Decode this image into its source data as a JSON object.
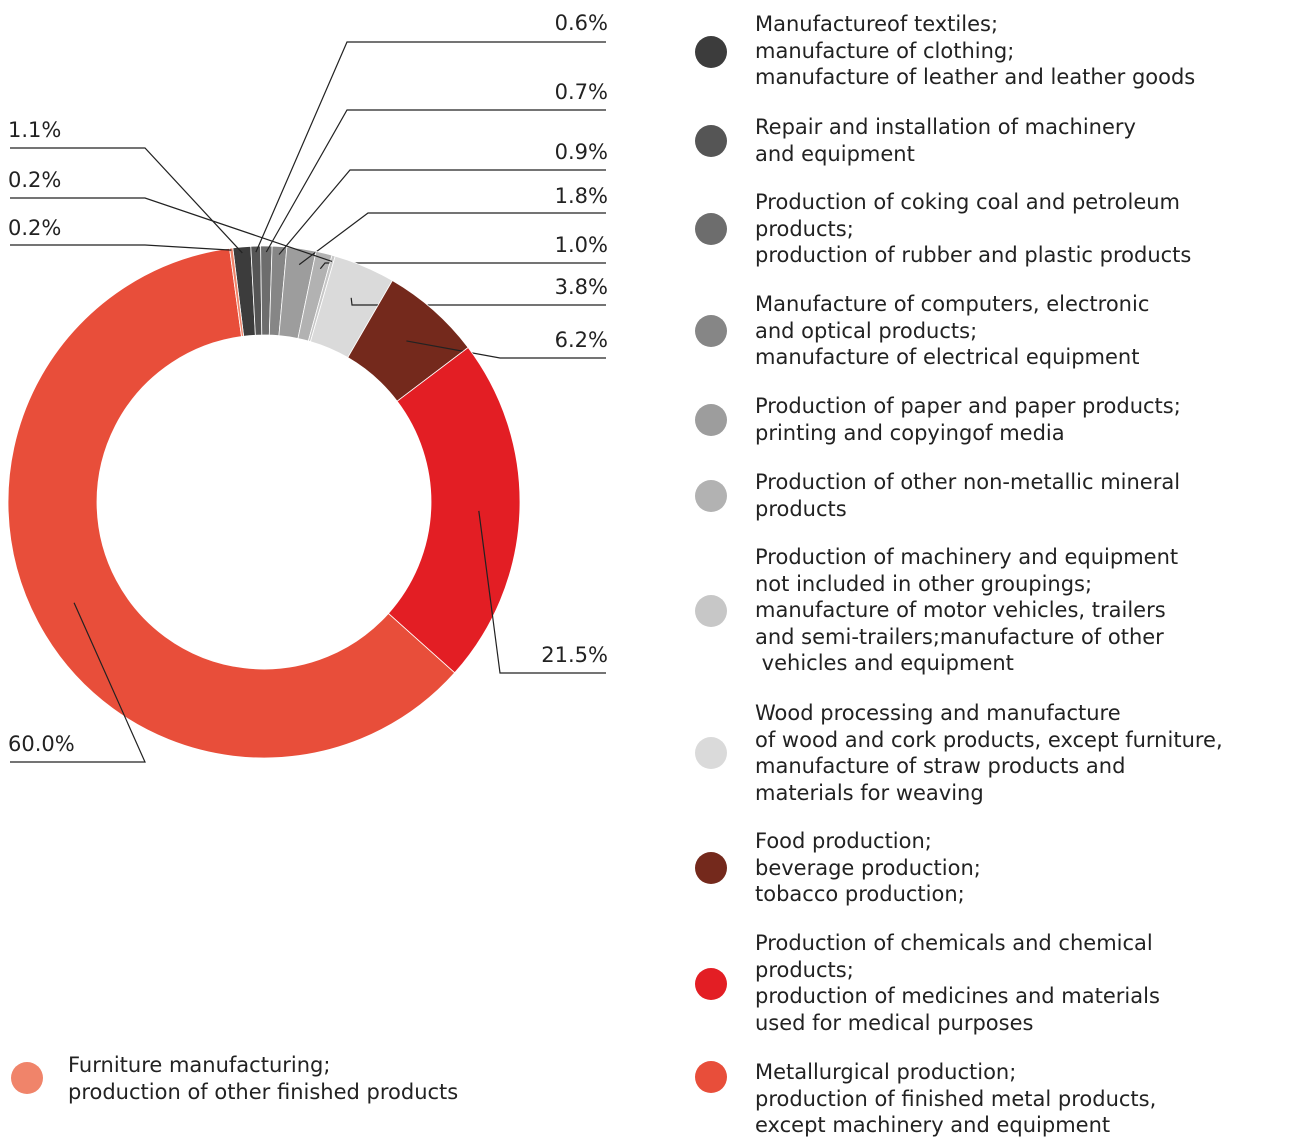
{
  "chart_data": {
    "type": "donut",
    "categories": [
      "Manufactureof textiles;\nmanufacture of clothing;\nmanufacture of leather and leather goods",
      "Repair and installation of machinery\nand equipment",
      "Production of coking coal and petroleum\nproducts;\nproduction of rubber and plastic products",
      "Manufacture of computers, electronic\nand optical products;\nmanufacture of electrical equipment",
      "Production of paper and paper products;\nprinting and copyingof media",
      "Production of other non-metallic mineral\nproducts",
      "Production of machinery and equipment\nnot included in other groupings;\nmanufacture of motor vehicles, trailers\nand semi-trailers;manufacture of other\n vehicles and equipment",
      "Wood processing and manufacture\nof wood and cork products, except furniture,\nmanufacture of straw products and\nmaterials for weaving",
      "Food production;\nbeverage production;\ntobacco production;",
      "Production of chemicals and chemical\nproducts;\nproduction of medicines and materials\nused for medical purposes",
      "Metallurgical production;\nproduction of finished metal products,\nexcept machinery and equipment",
      "Furniture manufacturing;\nproduction of other finished products"
    ],
    "values": [
      1.1,
      0.6,
      0.7,
      0.9,
      1.8,
      1.0,
      0.2,
      3.8,
      6.2,
      21.5,
      60.0,
      0.2
    ],
    "value_labels": [
      "1.1%",
      "0.6%",
      "0.7%",
      "0.9%",
      "1.8%",
      "1.0%",
      "0.2%",
      "3.8%",
      "6.2%",
      "21.5%",
      "60.0%",
      "0.2%"
    ],
    "colors": [
      "#3c3c3c",
      "#555555",
      "#6d6d6d",
      "#868686",
      "#9d9d9d",
      "#b2b2b2",
      "#c7c7c7",
      "#dadada",
      "#74291c",
      "#e31e24",
      "#e84e3a",
      "#f0846a"
    ]
  }
}
